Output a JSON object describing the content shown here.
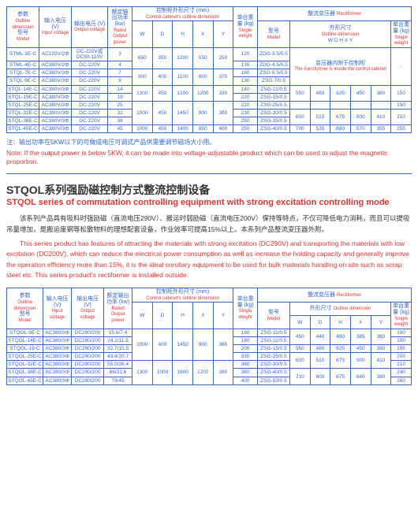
{
  "table1": {
    "head": {
      "params_cn": "参数",
      "params_en": "Outline dimension",
      "model_cn": "型号",
      "model_en": "Model",
      "input_cn": "输入电压 (V)",
      "input_en": "Input voltage",
      "output_cn": "输出电压 (V)",
      "output_en": "Output voltage",
      "power_cn": "额定输出功率 (kw)",
      "power_en": "Rated Output power",
      "cabinet_cn": "控制柜外形尺寸 (mm)",
      "cabinet_en": "Control cabinet's outline dimension",
      "weight_cn": "单台重量 (kg)",
      "weight_en": "Single weight",
      "rect_cn": "整流变压器",
      "rect_en": "Rectiformer",
      "dim_cn": "外形尺寸",
      "dim_en": "Outline dimension",
      "sweight_cn": "单台重量 (kg)",
      "sweight_en": "Single weight"
    },
    "cols": [
      "W",
      "D",
      "H",
      "X",
      "Y"
    ],
    "rows": [
      {
        "model": "STML-3E-C",
        "in": "AC220V/2Φ",
        "out": "DC-220V或DC90-110V",
        "pw": "3",
        "d": [
          "650",
          "350",
          "1200",
          "550",
          "250"
        ],
        "wt": "120",
        "rect": "ZDG-3.5/0.5"
      },
      {
        "model": "STML-4E-C",
        "in": "AC380V/2Φ",
        "out": "DC-220V",
        "pw": "4",
        "d": [
          "",
          "",
          "",
          "",
          ""
        ],
        "wt": "135",
        "rect": "ZDG-4.5/0.5"
      },
      {
        "model": "STQL-7E-C",
        "in": "AC380V/3Φ",
        "out": "DC-220V",
        "pw": "7",
        "d": [
          "900",
          "400",
          "1100",
          "800",
          "370"
        ],
        "wt": "180",
        "rect": "ZSG-5.5/0.5"
      },
      {
        "model": "STQL-9E-C",
        "in": "AC380V/3Φ",
        "out": "DC-220V",
        "pw": "9",
        "d": [
          "",
          "",
          "",
          "",
          ""
        ],
        "wt": "130",
        "rect": "ZSG-7/0.5"
      },
      {
        "model": "STQL-14E-C",
        "in": "AC380V/3Φ",
        "out": "DC-220V",
        "pw": "14",
        "d": [
          "1300",
          "450",
          "1200",
          "1200",
          "330"
        ],
        "wt": "140",
        "rect": "ZSG-11/0.5"
      },
      {
        "model": "STQL-19E-C",
        "in": "AC380V/3Φ",
        "out": "DC-220V",
        "pw": "19",
        "d": [
          "",
          "",
          "",
          "",
          ""
        ],
        "wt": "220",
        "rect": "ZSG-15/0.5"
      },
      {
        "model": "STQL-25E-C",
        "in": "AC380V/3Φ",
        "out": "DC-220V",
        "pw": "25",
        "d": [
          "",
          "",
          "",
          "",
          ""
        ],
        "wt": "220",
        "rect": "ZSG-25/0.5"
      },
      {
        "model": "STQL-32E-C",
        "in": "AC380V/3Φ",
        "out": "DC-220V",
        "pw": "32",
        "d": [
          "1000",
          "450",
          "1450",
          "900",
          "360"
        ],
        "wt": "230",
        "rect": "ZSG-30/0.5"
      },
      {
        "model": "STQL-38E-C",
        "in": "AC380V/3Φ",
        "out": "DC-220V",
        "pw": "38",
        "d": [
          "",
          "",
          "",
          "",
          ""
        ],
        "wt": "250",
        "rect": "ZSG-35/0.5"
      },
      {
        "model": "STQL-45E-C",
        "in": "AC380V/3Φ",
        "out": "DC-220V",
        "pw": "45",
        "d": [
          "1000",
          "450",
          "1400",
          "850",
          "400"
        ],
        "wt": "250",
        "rect": "ZSG-40/0.5"
      }
    ],
    "rectGroups": [
      {
        "note_cn": "变压器内附于控制柜",
        "note_en": "The transformer is inside the control cabinet",
        "span": 4
      },
      {
        "d": [
          "550",
          "480",
          "625",
          "450",
          "380"
        ],
        "wt": "150",
        "span": 2
      },
      {
        "d": [
          "",
          "",
          "",
          "",
          ""
        ],
        "wt": "190",
        "span": 1
      },
      {
        "d": [
          "600",
          "510",
          "675",
          "500",
          "410"
        ],
        "wt": "210",
        "span": 2
      },
      {
        "d": [
          "700",
          "535",
          "680",
          "570",
          "355"
        ],
        "wt": "255",
        "span": 1
      }
    ]
  },
  "notes": {
    "cn": "注：输出功率在5KW以下的可做成电压可调式产品供需要调节磁场大小用。",
    "en": "Note: If the output power is below 5KW, it can be made into voltage-adjustable product which can be used to adjust the magnetic proportion."
  },
  "section": {
    "title_cn": "STQOL系列强励磁控制方式整流控制设备",
    "title_en": "STQOL series of commutation controlling equipment with strong excitation controlling mode",
    "desc_cn": "该系列产品具有吸料时强励磁（直流电压290V）、搬运时弱励磁（直流电压200V）保持等特点，不仅可降低电力消耗，而且可以提吸吊量增加，是搬运废钢等松散物料的理想配套设备，作业效率可提高15%以上。本系列产品整流变压器外附。",
    "desc_en": "This series product has features of attracting the materials with strong excitation (DC290V) and transporting the materials with low excitation (DC200V), which can reduce the electrical power consumption as well as increase the holding capacity and generally improve the operation efficiency more than 15%, it is the ideal corollary equipment to be used for bulk materials handling on site such as scrap steel etc. This series product's rectiformer is installed outside."
  },
  "table2": {
    "rows": [
      {
        "model": "STQOL-9E-C",
        "in": "AC380/3Φ",
        "out": "DC290/200",
        "pw": "15.6/7.4",
        "d": [
          "1000",
          "400",
          "1450",
          "900",
          "360"
        ],
        "wt": "160",
        "rect": "ZSG-11/0.5",
        "rd": [
          "450",
          "440",
          "480",
          "385",
          "360"
        ],
        "rwt": "190"
      },
      {
        "model": "STQOL-14E-C",
        "in": "AC380/3Φ",
        "out": "DC290/200",
        "pw": "24.2/11.5",
        "d": [
          "",
          "",
          "",
          "",
          ""
        ],
        "wt": "180",
        "rect": "ZSG-11/0.5",
        "rd": [
          "",
          "",
          "",
          "",
          ""
        ],
        "rwt": "190"
      },
      {
        "model": "STQOL-19-C",
        "in": "AC380/3Φ",
        "out": "DC290/200",
        "pw": "32.7/15.5",
        "d": [
          "",
          "",
          "",
          "",
          ""
        ],
        "wt": "200",
        "rect": "ZSG-15/0.5",
        "rd": [
          "550",
          "480",
          "625",
          "450",
          "380"
        ],
        "rwt": "195"
      },
      {
        "model": "STQOL-25E-C",
        "in": "AC380/3Φ",
        "out": "DC290/200",
        "pw": "43.4/20.7",
        "d": [
          "",
          "",
          "",
          "",
          ""
        ],
        "wt": "330",
        "rect": "ZSG-25/0.5",
        "rd": [
          "600",
          "510",
          "675",
          "500",
          "410"
        ],
        "rwt": "200"
      },
      {
        "model": "STQOL-32E-C",
        "in": "AC380/3Φ",
        "out": "DC290/200",
        "pw": "55.0/26.4",
        "d": [
          "1300",
          "1000",
          "1600",
          "1200",
          "380"
        ],
        "wt": "360",
        "rect": "ZSG-30/0.5",
        "rd": [
          "",
          "",
          "",
          "",
          ""
        ],
        "rwt": "210"
      },
      {
        "model": "STQOL-38E-C",
        "in": "AC380/3Φ",
        "out": "DC290/200",
        "pw": "66/31.6",
        "d": [
          "",
          "",
          "",
          "",
          ""
        ],
        "wt": "380",
        "rect": "ZSG-40/0.5",
        "rd": [
          "710",
          "600",
          "675",
          "640",
          "380"
        ],
        "rwt": "240"
      },
      {
        "model": "STQOL-45E-C",
        "in": "AC380/3Φ",
        "out": "DC290/200",
        "pw": "78/45",
        "d": [
          "1100 (900)",
          "400",
          "2000 (1650)",
          "1000 (1460)",
          "380"
        ],
        "wt": "400",
        "rect": "ZSG-50/0.5",
        "rd": [
          "",
          "",
          "",
          "",
          ""
        ],
        "rwt": "260"
      }
    ]
  }
}
